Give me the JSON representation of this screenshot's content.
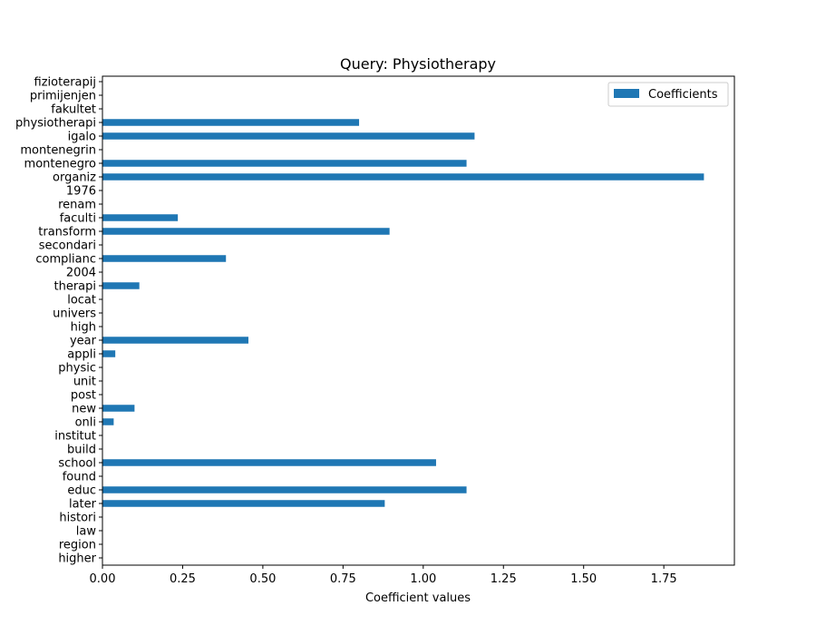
{
  "chart_data": {
    "type": "bar",
    "orientation": "horizontal",
    "title": "Query: Physiotherapy",
    "xlabel": "Coefficient values",
    "ylabel": "",
    "xlim": [
      0,
      1.97
    ],
    "x_ticks": [
      0.0,
      0.25,
      0.5,
      0.75,
      1.0,
      1.25,
      1.5,
      1.75
    ],
    "x_tick_labels": [
      "0.00",
      "0.25",
      "0.50",
      "0.75",
      "1.00",
      "1.25",
      "1.50",
      "1.75"
    ],
    "grid": false,
    "legend_position": "top-right",
    "categories": [
      "higher",
      "region",
      "law",
      "histori",
      "later",
      "educ",
      "found",
      "school",
      "build",
      "institut",
      "onli",
      "new",
      "post",
      "unit",
      "physic",
      "appli",
      "year",
      "high",
      "univers",
      "locat",
      "therapi",
      "2004",
      "complianc",
      "secondari",
      "transform",
      "faculti",
      "renam",
      "1976",
      "organiz",
      "montenegro",
      "montenegrin",
      "igalo",
      "physiotherapi",
      "fakultet",
      "primijenjen",
      "fizioterapij"
    ],
    "series": [
      {
        "name": "Coefficients",
        "color": "#1f77b4",
        "values": [
          0,
          0,
          0,
          0,
          0.88,
          1.135,
          0,
          1.04,
          0,
          0,
          0.035,
          0.1,
          0,
          0,
          0,
          0.04,
          0.455,
          0,
          0,
          0,
          0.115,
          0,
          0.385,
          0,
          0.895,
          0.235,
          0,
          0,
          1.875,
          1.135,
          0,
          1.16,
          0.8,
          0,
          0,
          0
        ]
      }
    ]
  }
}
